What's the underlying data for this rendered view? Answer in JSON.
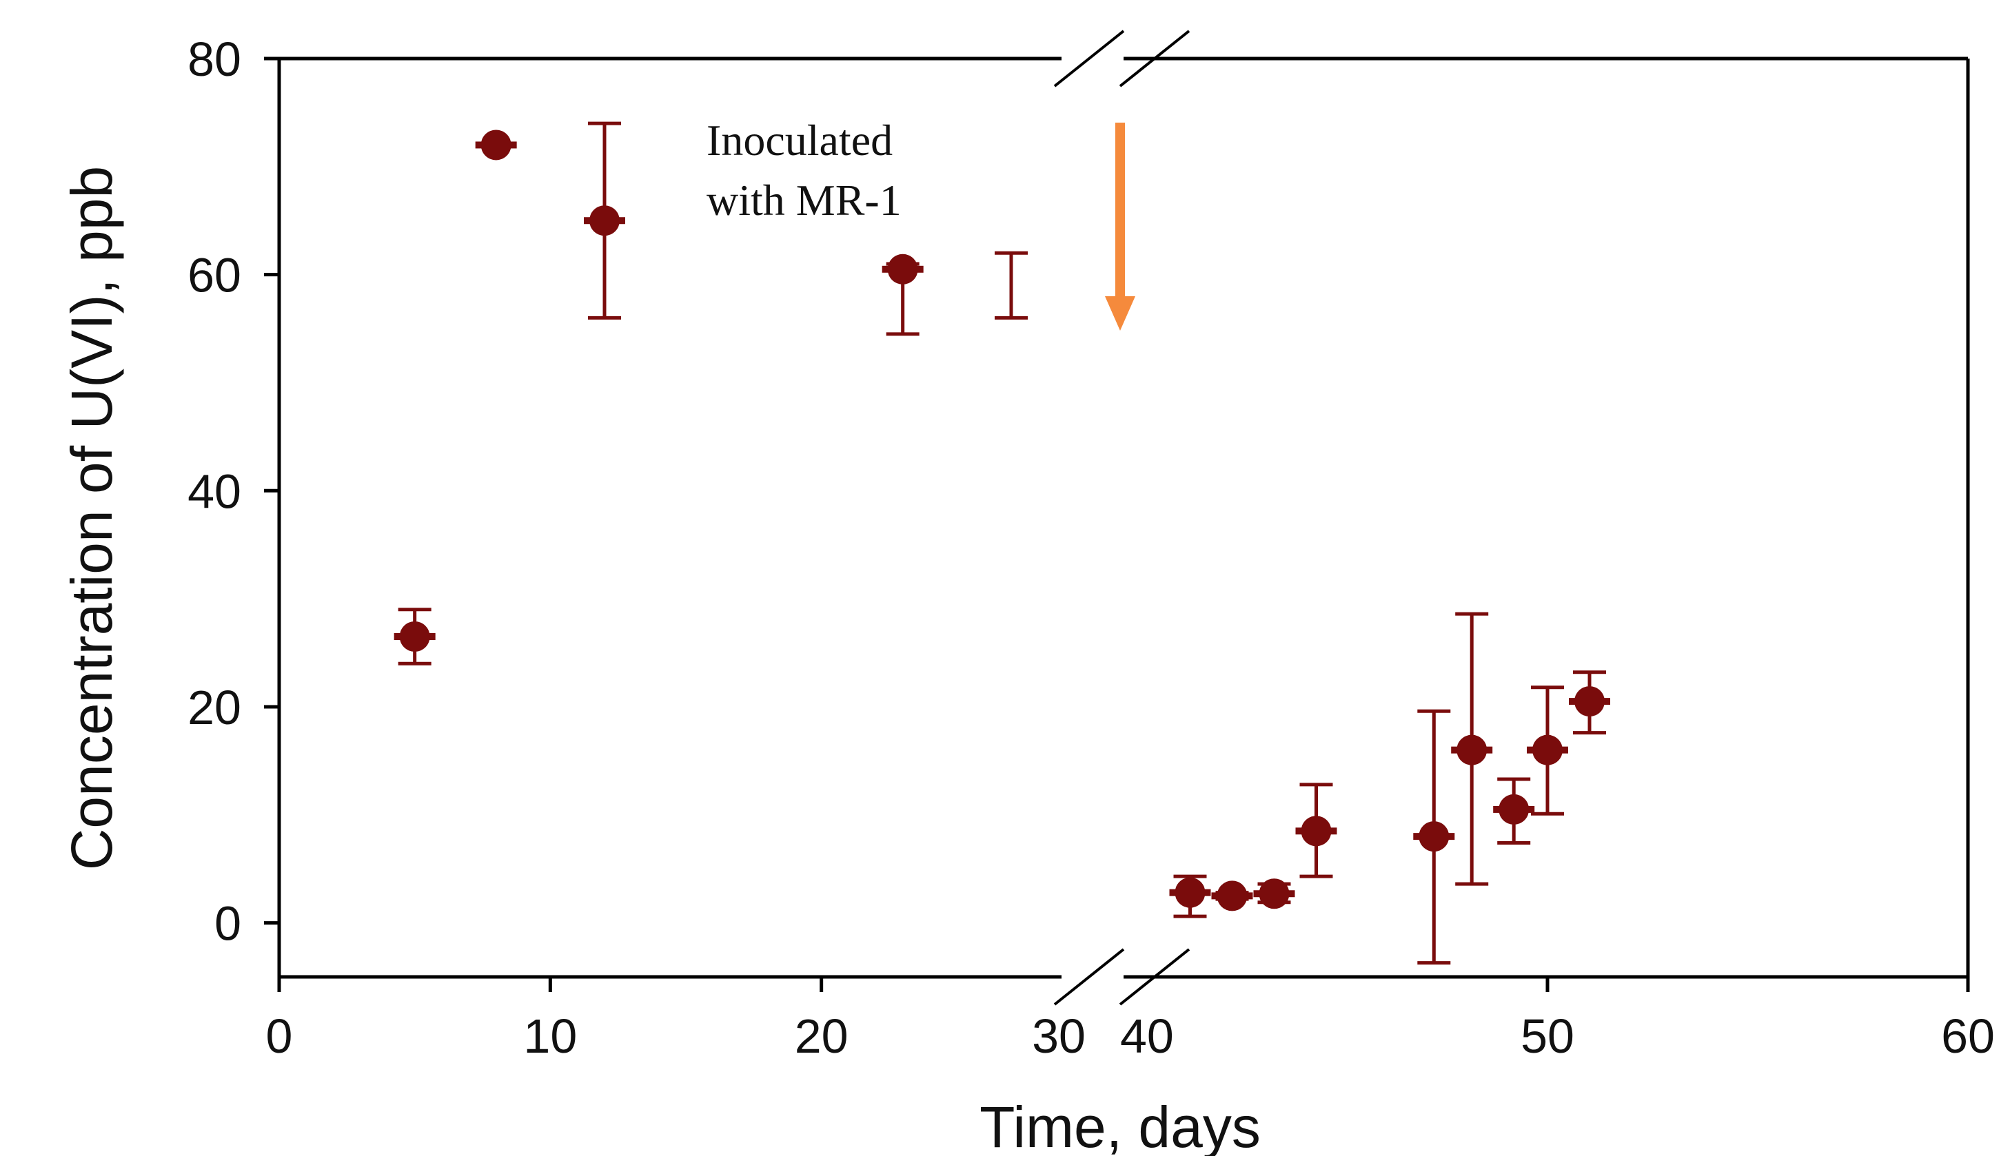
{
  "chart_data": {
    "type": "scatter",
    "title": "",
    "xlabel": "Time, days",
    "ylabel": "Concentration of U(VI), ppb",
    "left_segment": {
      "xlim": [
        0,
        30
      ],
      "x_ticks": [
        "0",
        "10",
        "20",
        "30"
      ]
    },
    "right_segment": {
      "xlim": [
        40,
        60
      ],
      "x_ticks": [
        "40",
        "50",
        "60"
      ]
    },
    "ylim": [
      -5,
      80
    ],
    "y_ticks": [
      "0",
      "20",
      "40",
      "60",
      "80"
    ],
    "axis_break": true,
    "grid": false,
    "legend": "none",
    "marker_color": "#7a0c0c",
    "arrow_color": "#f58a3c",
    "annotation": {
      "line1": "Inoculated",
      "line2": "with MR-1",
      "arrow_x": 30
    },
    "series": [
      {
        "points": [
          {
            "x": 5,
            "y": 26.5,
            "err_low": 24,
            "err_high": 29
          },
          {
            "x": 8,
            "y": 72,
            "err_low": null,
            "err_high": null
          },
          {
            "x": 12,
            "y": 65,
            "err_low": 56,
            "err_high": 74
          },
          {
            "x": 23,
            "y": 60.5,
            "err_low": 54.5,
            "err_high": 61
          },
          {
            "x": 27,
            "y": null,
            "err_low": 56,
            "err_high": 62
          },
          {
            "x": 41.5,
            "y": 2.8,
            "err_low": 0.6,
            "err_high": 4.3
          },
          {
            "x": 42.5,
            "y": 2.5,
            "err_low": 2.2,
            "err_high": 2.8
          },
          {
            "x": 43.5,
            "y": 2.7,
            "err_low": 1.9,
            "err_high": 3.6
          },
          {
            "x": 44.5,
            "y": 8.5,
            "err_low": 4.3,
            "err_high": 12.8
          },
          {
            "x": 47.3,
            "y": 8,
            "err_low": -3.7,
            "err_high": 19.6
          },
          {
            "x": 48.2,
            "y": 16,
            "err_low": 3.6,
            "err_high": 28.6
          },
          {
            "x": 49.2,
            "y": 10.5,
            "err_low": 7.4,
            "err_high": 13.3
          },
          {
            "x": 50,
            "y": 16,
            "err_low": 10.1,
            "err_high": 21.8
          },
          {
            "x": 51,
            "y": 20.5,
            "err_low": 17.6,
            "err_high": 23.2
          }
        ]
      }
    ]
  }
}
